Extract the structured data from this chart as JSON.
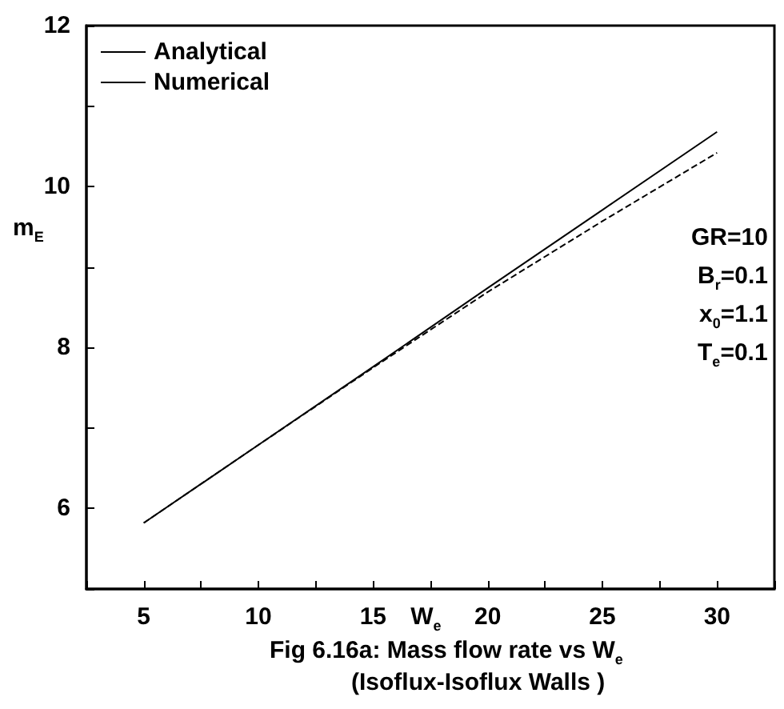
{
  "chart_data": {
    "type": "line",
    "title": "Fig 6.16a:    Mass flow rate vs W$_{e}$",
    "subtitle": "(Isoflux-Isoflux Walls )",
    "xlabel": "W$_{e}$",
    "ylabel": "m$_{E}$",
    "x": [
      5,
      10,
      15,
      20,
      25,
      30
    ],
    "series": [
      {
        "name": "Analytical",
        "color": "#000000",
        "line_style": "solid",
        "values": [
          5.82,
          6.79,
          7.76,
          8.74,
          9.71,
          10.68
        ]
      },
      {
        "name": "Numerical",
        "color": "#000000",
        "line_style": "dashed",
        "values": [
          5.82,
          6.79,
          7.75,
          8.69,
          9.57,
          10.42
        ]
      }
    ],
    "xlim": [
      2.5,
      32.5
    ],
    "xticks": [
      {
        "value": 2.5,
        "label": null
      },
      5,
      {
        "value": 7.5,
        "label": null
      },
      10,
      {
        "value": 12.5,
        "label": null
      },
      15,
      {
        "value": 17.5,
        "label": null
      },
      20,
      {
        "value": 22.5,
        "label": null
      },
      25,
      {
        "value": 27.5,
        "label": null
      },
      30,
      {
        "value": 32.5,
        "label": null
      }
    ],
    "ylim": [
      5,
      12
    ],
    "yticks": [
      {
        "value": 5,
        "label": null
      },
      6,
      {
        "value": 7,
        "label": null
      },
      8,
      {
        "value": 9,
        "label": null
      },
      10,
      {
        "value": 11,
        "label": null
      },
      12
    ],
    "annotations": [
      "GR=10",
      "B$_{r}$=0.1",
      "x$_{0}$=1.1",
      "T$_{e}$=0.1"
    ],
    "legend": "top left",
    "marker": "none",
    "grid": false
  }
}
